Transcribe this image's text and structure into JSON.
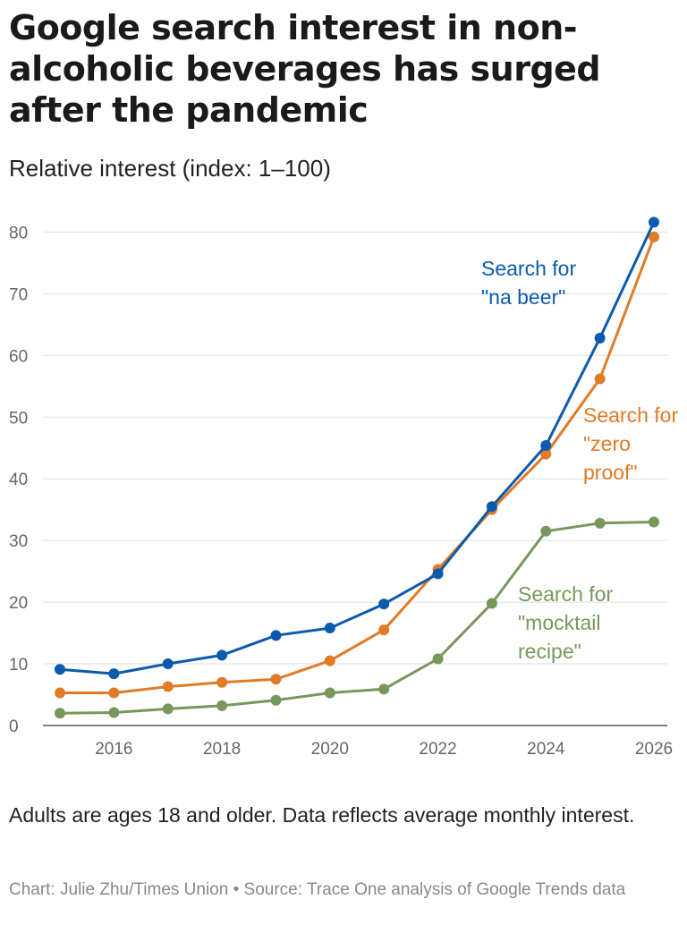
{
  "title": "Google search interest in non-alcoholic beverages has surged after the pandemic",
  "subtitle": "Relative interest (index: 1–100)",
  "note": "Adults are ages 18 and older. Data reflects average monthly interest.",
  "credit": "Chart: Julie Zhu/Times Union • Source: Trace One analysis of Google Trends data",
  "chart_data": {
    "type": "line",
    "x": [
      2015,
      2016,
      2017,
      2018,
      2019,
      2020,
      2021,
      2022,
      2023,
      2024,
      2025,
      2026
    ],
    "xticks": [
      2016,
      2018,
      2020,
      2022,
      2024,
      2026
    ],
    "yticks": [
      0,
      10,
      20,
      30,
      40,
      50,
      60,
      70,
      80
    ],
    "ylim": [
      0,
      82
    ],
    "xlim": [
      2015,
      2026
    ],
    "grid": true,
    "legend": "direct labels",
    "series": [
      {
        "name": "Search for \"mocktail recipe\"",
        "label_lines": [
          "Search for",
          "\"mocktail",
          "recipe\""
        ],
        "color": "#77985a",
        "values": [
          2.0,
          2.1,
          2.7,
          3.2,
          4.1,
          5.3,
          5.9,
          10.8,
          19.8,
          31.5,
          32.8,
          33.0
        ]
      },
      {
        "name": "Search for \"zero proof\"",
        "label_lines": [
          "Search for",
          "\"zero",
          "proof\""
        ],
        "color": "#e07b27",
        "values": [
          5.3,
          5.3,
          6.3,
          7.0,
          7.5,
          10.5,
          15.5,
          25.3,
          35.0,
          44.0,
          56.2,
          79.2
        ]
      },
      {
        "name": "Search for \"na beer\"",
        "label_lines": [
          "Search for",
          "\"na beer\""
        ],
        "color": "#0c5aad",
        "values": [
          9.1,
          8.4,
          10.0,
          11.4,
          14.6,
          15.8,
          19.7,
          24.6,
          35.5,
          45.4,
          62.8,
          81.6
        ]
      }
    ]
  }
}
